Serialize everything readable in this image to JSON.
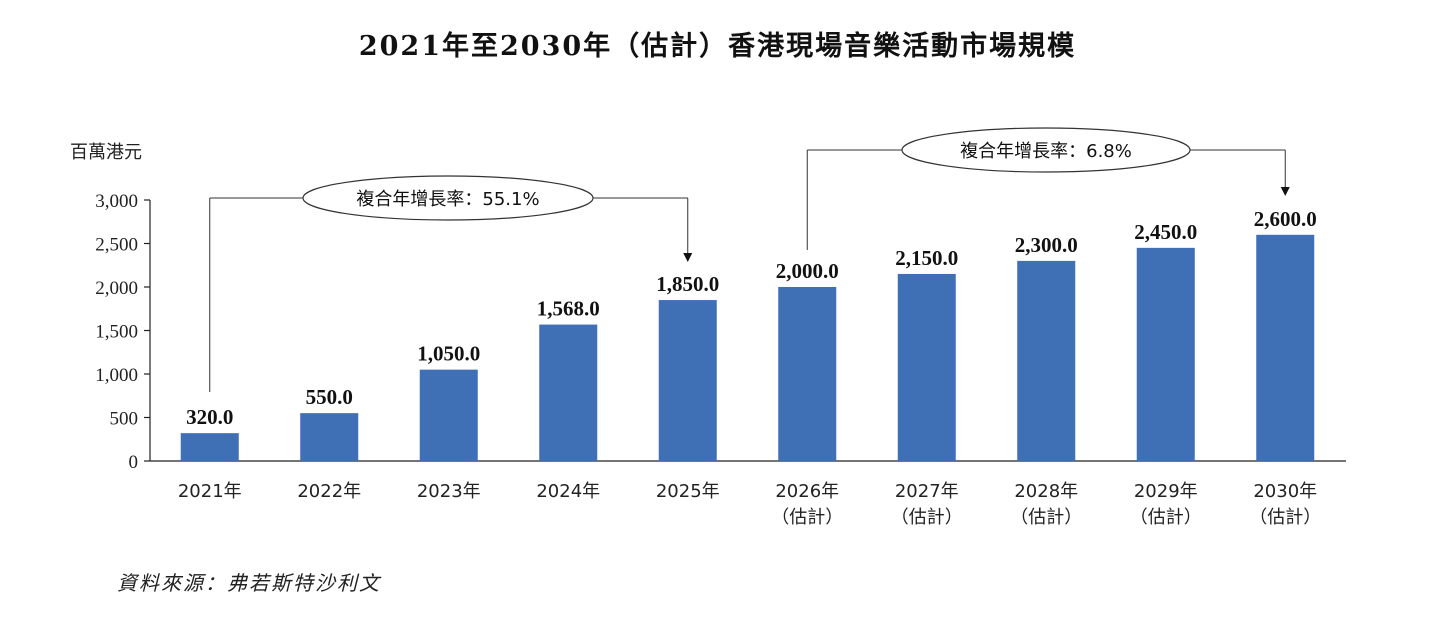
{
  "chart_data": {
    "type": "bar",
    "title": "2021年至2030年（估計）香港現場音樂活動市場規模",
    "ylabel": "百萬港元",
    "ylim": [
      0,
      3000
    ],
    "yticks": [
      0,
      500,
      1000,
      1500,
      2000,
      2500,
      3000
    ],
    "ytick_labels": [
      "0",
      "500",
      "1,000",
      "1,500",
      "2,000",
      "2,500",
      "3,000"
    ],
    "categories": [
      [
        "2021年",
        ""
      ],
      [
        "2022年",
        ""
      ],
      [
        "2023年",
        ""
      ],
      [
        "2024年",
        ""
      ],
      [
        "2025年",
        ""
      ],
      [
        "2026年",
        "（估計）"
      ],
      [
        "2027年",
        "（估計）"
      ],
      [
        "2028年",
        "（估計）"
      ],
      [
        "2029年",
        "（估計）"
      ],
      [
        "2030年",
        "（估計）"
      ]
    ],
    "values": [
      320.0,
      550.0,
      1050.0,
      1568.0,
      1850.0,
      2000.0,
      2150.0,
      2300.0,
      2450.0,
      2600.0
    ],
    "value_labels": [
      "320.0",
      "550.0",
      "1,050.0",
      "1,568.0",
      "1,850.0",
      "2,000.0",
      "2,150.0",
      "2,300.0",
      "2,450.0",
      "2,600.0"
    ],
    "bar_color": "#3f6fb5",
    "grid": false,
    "annotations": [
      {
        "text": "複合年增長率：55.1%",
        "from_index": 0,
        "to_index": 4
      },
      {
        "text": "複合年增長率：6.8%",
        "from_index": 5,
        "to_index": 9
      }
    ]
  },
  "source": "資料來源：弗若斯特沙利文"
}
